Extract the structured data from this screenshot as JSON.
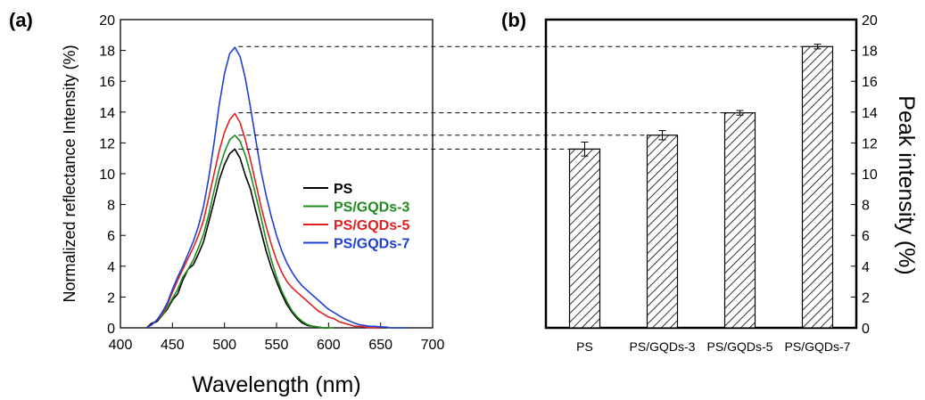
{
  "chart_data": [
    {
      "panel_label": "(a)",
      "type": "line",
      "xlabel": "Wavelength (nm)",
      "ylabel": "Normalized reflectance Intensity (%)",
      "xlim": [
        400,
        700
      ],
      "ylim": [
        0,
        20
      ],
      "xticks": [
        400,
        450,
        500,
        550,
        600,
        650,
        700
      ],
      "yticks": [
        0,
        2,
        4,
        6,
        8,
        10,
        12,
        14,
        16,
        18,
        20
      ],
      "legend_position": "center-right",
      "series": [
        {
          "name": "PS",
          "color": "#000000",
          "x": [
            425,
            430,
            435,
            440,
            445,
            450,
            455,
            460,
            465,
            470,
            475,
            480,
            485,
            490,
            495,
            500,
            505,
            510,
            515,
            520,
            525,
            530,
            535,
            540,
            545,
            550,
            555,
            560,
            565,
            570,
            575,
            580,
            585,
            590,
            595,
            600
          ],
          "y": [
            0,
            0.3,
            0.4,
            0.8,
            1.2,
            1.8,
            2.2,
            3.1,
            3.8,
            4.1,
            4.8,
            5.6,
            6.9,
            8.2,
            9.6,
            10.6,
            11.3,
            11.6,
            11.0,
            9.9,
            9.0,
            7.6,
            6.3,
            5.0,
            3.9,
            3.0,
            2.2,
            1.5,
            1.0,
            0.6,
            0.3,
            0.15,
            0.1,
            0.05,
            0.0,
            0.0
          ]
        },
        {
          "name": "PS/GQDs-3",
          "color": "#1f8b1f",
          "x": [
            425,
            430,
            435,
            440,
            445,
            450,
            455,
            460,
            465,
            470,
            475,
            480,
            485,
            490,
            495,
            500,
            505,
            510,
            515,
            520,
            525,
            530,
            535,
            540,
            545,
            550,
            555,
            560,
            565,
            570,
            575,
            580,
            585,
            590,
            595,
            600,
            605
          ],
          "y": [
            0,
            0.2,
            0.5,
            0.8,
            1.3,
            1.9,
            2.5,
            3.3,
            3.8,
            4.4,
            5.2,
            6.1,
            7.4,
            8.9,
            10.3,
            11.4,
            12.2,
            12.5,
            12.1,
            11.2,
            10.0,
            8.6,
            7.2,
            5.7,
            4.4,
            3.3,
            2.4,
            1.7,
            1.1,
            0.7,
            0.4,
            0.2,
            0.1,
            0.05,
            0.0,
            0.0,
            0.0
          ]
        },
        {
          "name": "PS/GQDs-5",
          "color": "#e02020",
          "x": [
            425,
            430,
            435,
            440,
            445,
            450,
            455,
            460,
            465,
            470,
            475,
            480,
            485,
            490,
            495,
            500,
            505,
            510,
            515,
            520,
            525,
            530,
            535,
            540,
            545,
            550,
            555,
            560,
            565,
            570,
            575,
            580,
            585,
            590,
            595,
            600,
            605,
            610,
            615,
            620,
            625,
            630,
            635,
            640,
            645,
            650
          ],
          "y": [
            0,
            0.2,
            0.5,
            0.9,
            1.5,
            2.3,
            3.1,
            3.8,
            4.5,
            5.2,
            6.0,
            7.0,
            8.5,
            10.0,
            11.5,
            12.7,
            13.5,
            13.9,
            13.3,
            12.2,
            10.9,
            9.4,
            7.9,
            6.6,
            5.4,
            4.4,
            3.6,
            3.0,
            2.6,
            2.3,
            2.0,
            1.7,
            1.4,
            1.1,
            0.9,
            0.7,
            0.6,
            0.4,
            0.3,
            0.2,
            0.1,
            0.1,
            0.05,
            0.0,
            0.0,
            0.0
          ]
        },
        {
          "name": "PS/GQDs-7",
          "color": "#1f3fd0",
          "x": [
            425,
            430,
            435,
            440,
            445,
            450,
            455,
            460,
            465,
            470,
            475,
            480,
            485,
            490,
            495,
            500,
            505,
            510,
            515,
            520,
            525,
            530,
            535,
            540,
            545,
            550,
            555,
            560,
            565,
            570,
            575,
            580,
            585,
            590,
            595,
            600,
            605,
            610,
            615,
            620,
            625,
            630,
            635,
            640,
            645,
            650,
            655,
            660,
            665,
            670,
            675
          ],
          "y": [
            0,
            0.2,
            0.5,
            1.0,
            1.6,
            2.5,
            3.3,
            4.0,
            4.8,
            5.6,
            6.6,
            7.9,
            9.8,
            12.0,
            14.5,
            16.5,
            17.8,
            18.2,
            17.6,
            16.2,
            14.3,
            12.2,
            10.2,
            8.6,
            7.2,
            6.0,
            5.0,
            4.2,
            3.6,
            3.1,
            2.7,
            2.4,
            2.1,
            1.8,
            1.5,
            1.2,
            1.0,
            0.8,
            0.6,
            0.45,
            0.3,
            0.2,
            0.15,
            0.1,
            0.1,
            0.05,
            0.05,
            0.0,
            0.0,
            0.0,
            0.0
          ]
        }
      ]
    },
    {
      "panel_label": "(b)",
      "type": "bar",
      "ylabel": "Peak intensity (%)",
      "ylim": [
        0,
        20
      ],
      "yticks": [
        0,
        2,
        4,
        6,
        8,
        10,
        12,
        14,
        16,
        18,
        20
      ],
      "y_axis_side": "right",
      "bar_fill": "diagonal hatch",
      "categories": [
        "PS",
        "PS/GQDs-3",
        "PS/GQDs-5",
        "PS/GQDs-7"
      ],
      "values": [
        11.6,
        12.5,
        13.95,
        18.25
      ],
      "errors": [
        0.45,
        0.3,
        0.15,
        0.15
      ]
    }
  ],
  "connectors": {
    "style": "dashed",
    "levels": [
      18.25,
      13.95,
      12.5,
      11.6
    ]
  }
}
